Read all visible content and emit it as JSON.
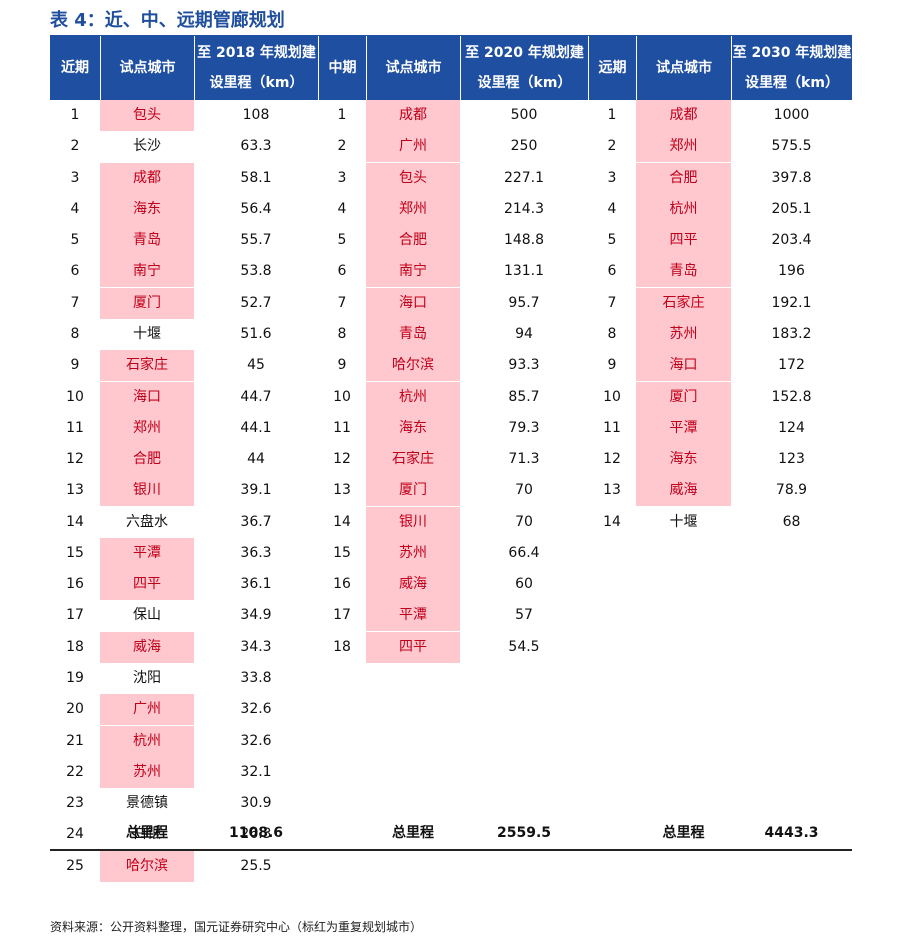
{
  "title": "表 4：近、中、远期管廊规划",
  "colors": {
    "header_bg": "#1f4fa0",
    "highlight_bg": "#ffc7ce",
    "highlight_text": "#c0001a",
    "title": "#1f4e9c"
  },
  "headers": {
    "near": {
      "period": "近期",
      "city": "试点城市",
      "value_line1": "至 2018 年规划建",
      "value_line2": "设里程（km）"
    },
    "mid": {
      "period": "中期",
      "city": "试点城市",
      "value_line1": "至 2020 年规划建",
      "value_line2": "设里程（km）"
    },
    "far": {
      "period": "远期",
      "city": "试点城市",
      "value_line1": "至 2030 年规划建",
      "value_line2": "设里程（km）"
    }
  },
  "near": [
    {
      "rank": "1",
      "city": "包头",
      "km": "108",
      "hl": true
    },
    {
      "rank": "2",
      "city": "长沙",
      "km": "63.3",
      "hl": false
    },
    {
      "rank": "3",
      "city": "成都",
      "km": "58.1",
      "hl": true
    },
    {
      "rank": "4",
      "city": "海东",
      "km": "56.4",
      "hl": true
    },
    {
      "rank": "5",
      "city": "青岛",
      "km": "55.7",
      "hl": true
    },
    {
      "rank": "6",
      "city": "南宁",
      "km": "53.8",
      "hl": true
    },
    {
      "rank": "7",
      "city": "厦门",
      "km": "52.7",
      "hl": true
    },
    {
      "rank": "8",
      "city": "十堰",
      "km": "51.6",
      "hl": false
    },
    {
      "rank": "9",
      "city": "石家庄",
      "km": "45",
      "hl": true
    },
    {
      "rank": "10",
      "city": "海口",
      "km": "44.7",
      "hl": true
    },
    {
      "rank": "11",
      "city": "郑州",
      "km": "44.1",
      "hl": true
    },
    {
      "rank": "12",
      "city": "合肥",
      "km": "44",
      "hl": true
    },
    {
      "rank": "13",
      "city": "银川",
      "km": "39.1",
      "hl": true
    },
    {
      "rank": "14",
      "city": "六盘水",
      "km": "36.7",
      "hl": false
    },
    {
      "rank": "15",
      "city": "平潭",
      "km": "36.3",
      "hl": true
    },
    {
      "rank": "16",
      "city": "四平",
      "km": "36.1",
      "hl": true
    },
    {
      "rank": "17",
      "city": "保山",
      "km": "34.9",
      "hl": false
    },
    {
      "rank": "18",
      "city": "威海",
      "km": "34.3",
      "hl": true
    },
    {
      "rank": "19",
      "city": "沈阳",
      "km": "33.8",
      "hl": false
    },
    {
      "rank": "20",
      "city": "广州",
      "km": "32.6",
      "hl": true
    },
    {
      "rank": "21",
      "city": "杭州",
      "km": "32.6",
      "hl": true
    },
    {
      "rank": "22",
      "city": "苏州",
      "km": "32.1",
      "hl": true
    },
    {
      "rank": "23",
      "city": "景德镇",
      "km": "30.9",
      "hl": false
    },
    {
      "rank": "24",
      "city": "白银",
      "km": "26.3",
      "hl": false
    },
    {
      "rank": "25",
      "city": "哈尔滨",
      "km": "25.5",
      "hl": true
    }
  ],
  "mid": [
    {
      "rank": "1",
      "city": "成都",
      "km": "500",
      "hl": true
    },
    {
      "rank": "2",
      "city": "广州",
      "km": "250",
      "hl": true
    },
    {
      "rank": "3",
      "city": "包头",
      "km": "227.1",
      "hl": true
    },
    {
      "rank": "4",
      "city": "郑州",
      "km": "214.3",
      "hl": true
    },
    {
      "rank": "5",
      "city": "合肥",
      "km": "148.8",
      "hl": true
    },
    {
      "rank": "6",
      "city": "南宁",
      "km": "131.1",
      "hl": true
    },
    {
      "rank": "7",
      "city": "海口",
      "km": "95.7",
      "hl": true
    },
    {
      "rank": "8",
      "city": "青岛",
      "km": "94",
      "hl": true
    },
    {
      "rank": "9",
      "city": "哈尔滨",
      "km": "93.3",
      "hl": true
    },
    {
      "rank": "10",
      "city": "杭州",
      "km": "85.7",
      "hl": true
    },
    {
      "rank": "11",
      "city": "海东",
      "km": "79.3",
      "hl": true
    },
    {
      "rank": "12",
      "city": "石家庄",
      "km": "71.3",
      "hl": true
    },
    {
      "rank": "13",
      "city": "厦门",
      "km": "70",
      "hl": true
    },
    {
      "rank": "14",
      "city": "银川",
      "km": "70",
      "hl": true
    },
    {
      "rank": "15",
      "city": "苏州",
      "km": "66.4",
      "hl": true
    },
    {
      "rank": "16",
      "city": "威海",
      "km": "60",
      "hl": true
    },
    {
      "rank": "17",
      "city": "平潭",
      "km": "57",
      "hl": true
    },
    {
      "rank": "18",
      "city": "四平",
      "km": "54.5",
      "hl": true
    }
  ],
  "far": [
    {
      "rank": "1",
      "city": "成都",
      "km": "1000",
      "hl": true
    },
    {
      "rank": "2",
      "city": "郑州",
      "km": "575.5",
      "hl": true
    },
    {
      "rank": "3",
      "city": "合肥",
      "km": "397.8",
      "hl": true
    },
    {
      "rank": "4",
      "city": "杭州",
      "km": "205.1",
      "hl": true
    },
    {
      "rank": "5",
      "city": "四平",
      "km": "203.4",
      "hl": true
    },
    {
      "rank": "6",
      "city": "青岛",
      "km": "196",
      "hl": true
    },
    {
      "rank": "7",
      "city": "石家庄",
      "km": "192.1",
      "hl": true
    },
    {
      "rank": "8",
      "city": "苏州",
      "km": "183.2",
      "hl": true
    },
    {
      "rank": "9",
      "city": "海口",
      "km": "172",
      "hl": true
    },
    {
      "rank": "10",
      "city": "厦门",
      "km": "152.8",
      "hl": true
    },
    {
      "rank": "11",
      "city": "平潭",
      "km": "124",
      "hl": true
    },
    {
      "rank": "12",
      "city": "海东",
      "km": "123",
      "hl": true
    },
    {
      "rank": "13",
      "city": "威海",
      "km": "78.9",
      "hl": true
    },
    {
      "rank": "14",
      "city": "十堰",
      "km": "68",
      "hl": false
    }
  ],
  "totals": {
    "label": "总里程",
    "near": "1108.6",
    "mid": "2559.5",
    "far": "4443.3"
  },
  "source": "资料来源：公开资料整理，国元证券研究中心（标红为重复规划城市）"
}
